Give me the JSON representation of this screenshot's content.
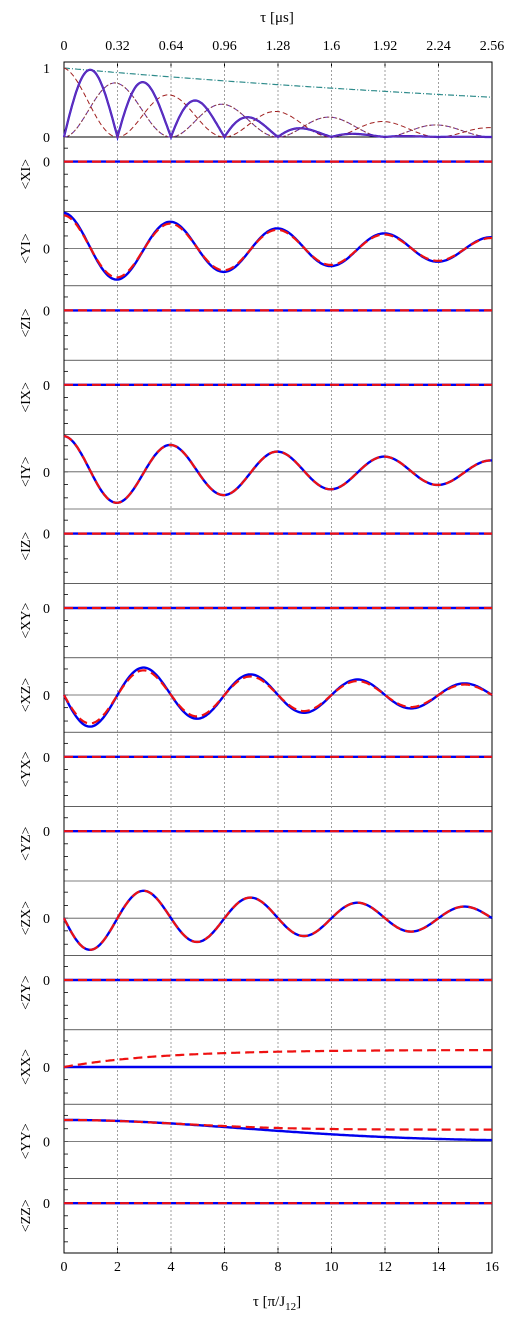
{
  "chart_data": {
    "type": "line",
    "top_axis": {
      "label": "τ  [μs]",
      "ticks": [
        "0",
        "0.32",
        "0.64",
        "0.96",
        "1.28",
        "1.6",
        "1.92",
        "2.24",
        "2.56"
      ]
    },
    "bottom_axis": {
      "label": "τ  [π/J",
      "label_sub": "12",
      "label_end": "]",
      "ticks": [
        "0",
        "2",
        "4",
        "6",
        "8",
        "10",
        "12",
        "14",
        "16"
      ],
      "xlim": [
        0,
        16
      ]
    },
    "grid": {
      "vertical_dotted": true,
      "zero_line": true
    },
    "top_panel": {
      "ylim": [
        0,
        1
      ],
      "yticks": [
        "1",
        "0"
      ],
      "series": [
        {
          "style": "envelope",
          "color": "#2e8b8b",
          "values_at_x": [
            [
              0,
              1
            ],
            [
              4,
              0.85
            ],
            [
              8,
              0.72
            ],
            [
              12,
              0.6
            ],
            [
              16,
              0.45
            ]
          ]
        },
        {
          "style": "fidelity",
          "color": "#6a2fb0",
          "peaks": [
            [
              1,
              1
            ],
            [
              3,
              0.83
            ],
            [
              5,
              0.62
            ],
            [
              7,
              0.38
            ],
            [
              9,
              0.18
            ],
            [
              11,
              0.04
            ]
          ]
        }
      ]
    },
    "panels": [
      {
        "label": "<XI>",
        "tick": "0",
        "shape": "flat"
      },
      {
        "label": "<YI>",
        "tick": "0",
        "shape": "cos"
      },
      {
        "label": "<ZI>",
        "tick": "0",
        "shape": "flat"
      },
      {
        "label": "<IX>",
        "tick": "0",
        "shape": "flat"
      },
      {
        "label": "<IY>",
        "tick": "0",
        "shape": "cos"
      },
      {
        "label": "<IZ>",
        "tick": "0",
        "shape": "flat"
      },
      {
        "label": "<XY>",
        "tick": "0",
        "shape": "flat"
      },
      {
        "label": "<XZ>",
        "tick": "0",
        "shape": "sin"
      },
      {
        "label": "<YX>",
        "tick": "0",
        "shape": "flat"
      },
      {
        "label": "<YZ>",
        "tick": "0",
        "shape": "flat"
      },
      {
        "label": "<ZX>",
        "tick": "0",
        "shape": "sin"
      },
      {
        "label": "<ZY>",
        "tick": "0",
        "shape": "flat"
      },
      {
        "label": "<XX>",
        "tick": "0",
        "shape": "rise"
      },
      {
        "label": "<YY>",
        "tick": "0",
        "shape": "decay"
      },
      {
        "label": "<ZZ>",
        "tick": "0",
        "shape": "flat"
      }
    ],
    "series_styles": [
      {
        "color": "#0000ee",
        "dash": "solid"
      },
      {
        "color": "#ee1111",
        "dash": "dashed"
      }
    ]
  }
}
